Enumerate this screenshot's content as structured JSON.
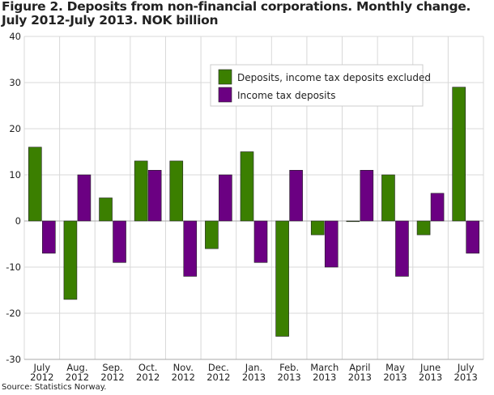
{
  "chart_data": {
    "type": "bar",
    "title": "Figure 2. Deposits from non-financial corporations. Monthly change. July 2012-July 2013. NOK billion",
    "categories": [
      [
        "July",
        "2012"
      ],
      [
        "Aug.",
        "2012"
      ],
      [
        "Sep.",
        "2012"
      ],
      [
        "Oct.",
        "2012"
      ],
      [
        "Nov.",
        "2012"
      ],
      [
        "Dec.",
        "2012"
      ],
      [
        "Jan.",
        "2013"
      ],
      [
        "Feb.",
        "2013"
      ],
      [
        "March",
        "2013"
      ],
      [
        "April",
        "2013"
      ],
      [
        "May",
        "2013"
      ],
      [
        "June",
        "2013"
      ],
      [
        "July",
        "2013"
      ]
    ],
    "series": [
      {
        "name": "Deposits, income tax deposits excluded",
        "color": "#3b7f00",
        "values": [
          16,
          -17,
          5,
          13,
          13,
          -6,
          15,
          -25,
          -3,
          0,
          10,
          -3,
          29
        ]
      },
      {
        "name": "Income tax deposits",
        "color": "#6b0082",
        "values": [
          -7,
          10,
          -9,
          11,
          -12,
          10,
          -9,
          11,
          -10,
          11,
          -12,
          6,
          -7
        ]
      }
    ],
    "ylim": [
      -30,
      40
    ],
    "yticks": [
      -30,
      -20,
      -10,
      0,
      10,
      20,
      30,
      40
    ],
    "grid": true,
    "legend": "top-right",
    "source": "Source: Statistics Norway."
  }
}
